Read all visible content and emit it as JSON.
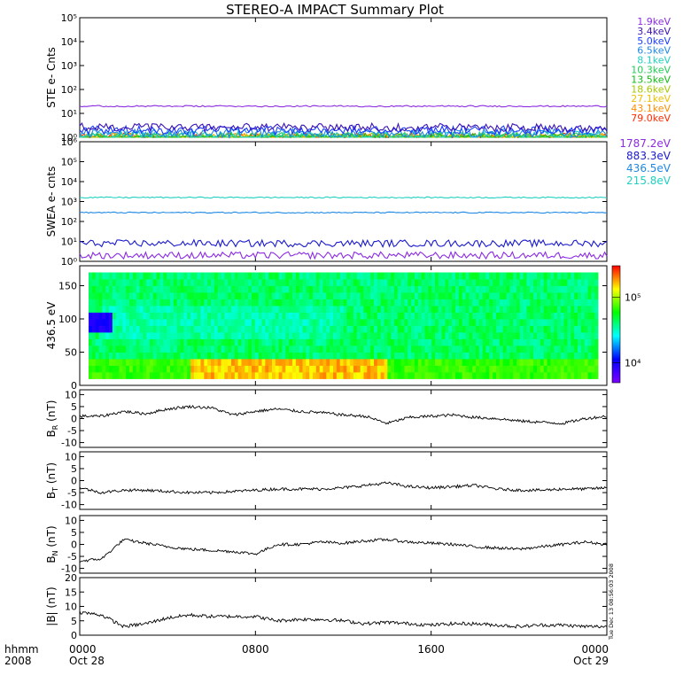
{
  "title": "STEREO-A IMPACT Summary Plot",
  "time_axis": {
    "unit_label": "hhmm",
    "year_label": "2008",
    "ticks": [
      {
        "time": "0000",
        "date": "Oct 28",
        "hour": 0
      },
      {
        "time": "0800",
        "date": "",
        "hour": 8
      },
      {
        "time": "1600",
        "date": "",
        "hour": 16
      },
      {
        "time": "0000",
        "date": "Oct 29",
        "hour": 24
      }
    ]
  },
  "side_stamp": "Tue Dec 13 08:56:03 2008",
  "chart_data": [
    {
      "id": "ste",
      "type": "line",
      "ylabel": "STE e- Cnts",
      "yscale": "log",
      "ylim": [
        1,
        100000
      ],
      "y_ticks": [
        1,
        10,
        100,
        1000,
        10000,
        100000
      ],
      "y_tick_labels": [
        "10⁰",
        "10¹",
        "10²",
        "10³",
        "10⁴",
        "10⁵"
      ],
      "series": [
        {
          "name": "1.9keV",
          "color": "#8b2be2",
          "level": 20
        },
        {
          "name": "3.4keV",
          "color": "#3a12b4",
          "level": 2.6
        },
        {
          "name": "5.0keV",
          "color": "#1a3cff",
          "level": 2.0
        },
        {
          "name": "6.5keV",
          "color": "#1e88e5",
          "level": 1.5
        },
        {
          "name": "8.1keV",
          "color": "#20d0c0",
          "level": 1.2
        },
        {
          "name": "10.3keV",
          "color": "#22cc55",
          "level": 1.1
        },
        {
          "name": "13.5keV",
          "color": "#11bb11",
          "level": 1.0
        },
        {
          "name": "18.6keV",
          "color": "#a8c800",
          "level": 1.0
        },
        {
          "name": "27.1keV",
          "color": "#f0c000",
          "level": 1.0
        },
        {
          "name": "43.1keV",
          "color": "#ff8c00",
          "level": 1.0
        },
        {
          "name": "79.0keV",
          "color": "#ff2a00",
          "level": 1.0
        }
      ]
    },
    {
      "id": "swea",
      "type": "line",
      "ylabel": "SWEA e- cnts",
      "yscale": "log",
      "ylim": [
        1,
        1000000
      ],
      "y_ticks": [
        1,
        10,
        100,
        1000,
        10000,
        100000,
        1000000
      ],
      "y_tick_labels": [
        "10⁰",
        "10¹",
        "10²",
        "10³",
        "10⁴",
        "10⁵",
        "10⁶"
      ],
      "series": [
        {
          "name": "1787.2eV",
          "color": "#8b2be2",
          "level": 2
        },
        {
          "name": "883.3eV",
          "color": "#1a1acc",
          "level": 8
        },
        {
          "name": "436.5eV",
          "color": "#1e88e5",
          "level": 280
        },
        {
          "name": "215.8eV",
          "color": "#20d0c0",
          "level": 1600
        }
      ]
    },
    {
      "id": "pad",
      "type": "heatmap",
      "ylabel": "436.5 eV",
      "ylim": [
        0,
        180
      ],
      "y_ticks": [
        0,
        50,
        100,
        150
      ],
      "colorbar_ticks": [
        {
          "value": 10000,
          "label": "10⁴"
        },
        {
          "value": 100000,
          "label": "10⁵"
        }
      ],
      "colorbar_range": [
        5000,
        300000
      ],
      "colors": [
        "#7a00ff",
        "#0000ff",
        "#00ffff",
        "#00ff00",
        "#ffff00",
        "#ff0000"
      ],
      "pitch_angle_range": [
        10,
        170
      ]
    },
    {
      "id": "br",
      "type": "line",
      "ylabel": "B",
      "ysub": "R",
      "yunit": " (nT)",
      "ylim": [
        -12,
        12
      ],
      "y_ticks": [
        -10,
        -5,
        0,
        5,
        10
      ],
      "hours": [
        0,
        1,
        2,
        3,
        4,
        5,
        6,
        7,
        8,
        9,
        10,
        11,
        12,
        13,
        14,
        15,
        16,
        17,
        18,
        19,
        20,
        21,
        22,
        23,
        24
      ],
      "values": [
        1,
        1,
        3,
        2,
        4,
        5,
        4.5,
        1.5,
        3,
        4,
        3,
        2.5,
        1.5,
        1,
        -2,
        0.5,
        1,
        1.5,
        0.5,
        0,
        -1,
        -1.5,
        -2,
        0,
        1
      ]
    },
    {
      "id": "bt",
      "type": "line",
      "ylabel": "B",
      "ysub": "T",
      "yunit": " (nT)",
      "ylim": [
        -12,
        12
      ],
      "y_ticks": [
        -10,
        -5,
        0,
        5,
        10
      ],
      "hours": [
        0,
        1,
        2,
        3,
        4,
        5,
        6,
        7,
        8,
        9,
        10,
        11,
        12,
        13,
        14,
        15,
        16,
        17,
        18,
        19,
        20,
        21,
        22,
        23,
        24
      ],
      "values": [
        -3,
        -5,
        -4,
        -4,
        -4.5,
        -5,
        -5,
        -4.5,
        -4,
        -3.5,
        -3.5,
        -3.5,
        -3,
        -2,
        -1,
        -2.5,
        -3,
        -2.5,
        -2,
        -3.5,
        -4,
        -4,
        -3.5,
        -3.5,
        -3
      ]
    },
    {
      "id": "bn",
      "type": "line",
      "ylabel": "B",
      "ysub": "N",
      "yunit": " (nT)",
      "ylim": [
        -12,
        12
      ],
      "y_ticks": [
        -10,
        -5,
        0,
        5,
        10
      ],
      "hours": [
        0,
        1,
        2,
        3,
        4,
        5,
        6,
        7,
        8,
        9,
        10,
        11,
        12,
        13,
        14,
        15,
        16,
        17,
        18,
        19,
        20,
        21,
        22,
        23,
        24
      ],
      "values": [
        -7,
        -6,
        2,
        0.5,
        -1,
        -2,
        -2.5,
        -3,
        -4,
        0,
        0,
        1,
        0.5,
        1.5,
        2,
        1,
        0.5,
        0,
        -1,
        -1.5,
        -2,
        -1,
        0,
        1,
        0
      ]
    },
    {
      "id": "bmag",
      "type": "line",
      "ylabel": "|B|",
      "ysub": "",
      "yunit": " (nT)",
      "ylim": [
        0,
        20
      ],
      "y_ticks": [
        0,
        5,
        10,
        15,
        20
      ],
      "hours": [
        0,
        1,
        2,
        3,
        4,
        5,
        6,
        7,
        8,
        9,
        10,
        11,
        12,
        13,
        14,
        15,
        16,
        17,
        18,
        19,
        20,
        21,
        22,
        23,
        24
      ],
      "values": [
        8,
        7,
        3,
        4,
        6,
        7,
        6.5,
        6.5,
        6.5,
        5,
        5.5,
        5.5,
        5,
        4,
        4.5,
        4,
        3.5,
        4,
        4,
        3.5,
        3,
        3.5,
        3.5,
        3,
        3
      ]
    }
  ]
}
